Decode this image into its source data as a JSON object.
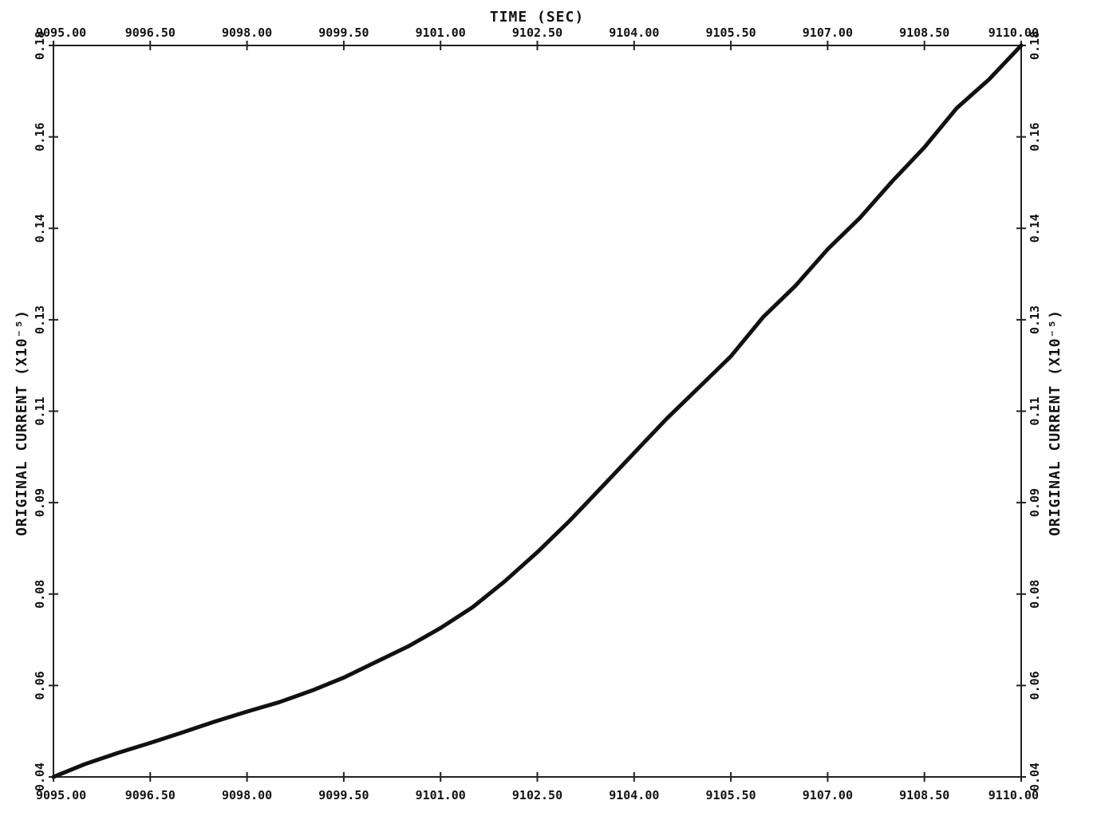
{
  "chart_data": {
    "type": "line",
    "title": "",
    "xlabel": "TIME (SEC)",
    "ylabel": "ORIGINAL CURRENT (X10⁻⁵)",
    "xlim": [
      9095.0,
      9110.0
    ],
    "ylim": [
      0.04,
      0.18
    ],
    "x_tick_labels": [
      "9095.00",
      "9096.50",
      "9098.00",
      "9099.50",
      "9101.00",
      "9102.50",
      "9104.00",
      "9105.50",
      "9107.00",
      "9108.50",
      "9110.00"
    ],
    "y_tick_labels": [
      "0.04",
      "0.06",
      "0.08",
      "0.09",
      "0.11",
      "0.13",
      "0.14",
      "0.16",
      "0.18"
    ],
    "grid": false,
    "series": [
      {
        "x": [
          9095.0,
          9095.5,
          9096.0,
          9096.5,
          9097.0,
          9097.5,
          9098.0,
          9098.5,
          9099.0,
          9099.5,
          9100.0,
          9100.5,
          9101.0,
          9101.5,
          9102.0,
          9102.5,
          9103.0,
          9103.5,
          9104.0,
          9104.5,
          9105.0,
          9105.5,
          9106.0,
          9106.5,
          9107.0,
          9107.5,
          9108.0,
          9108.5,
          9109.0,
          9109.5,
          9110.0
        ],
        "y": [
          0.04,
          0.0425,
          0.0446,
          0.0465,
          0.0485,
          0.0506,
          0.0525,
          0.0543,
          0.0565,
          0.059,
          0.062,
          0.065,
          0.0685,
          0.0725,
          0.0775,
          0.083,
          0.089,
          0.0955,
          0.102,
          0.1085,
          0.1145,
          0.1205,
          0.128,
          0.134,
          0.141,
          0.147,
          0.154,
          0.1605,
          0.168,
          0.1735,
          0.18
        ]
      }
    ]
  }
}
